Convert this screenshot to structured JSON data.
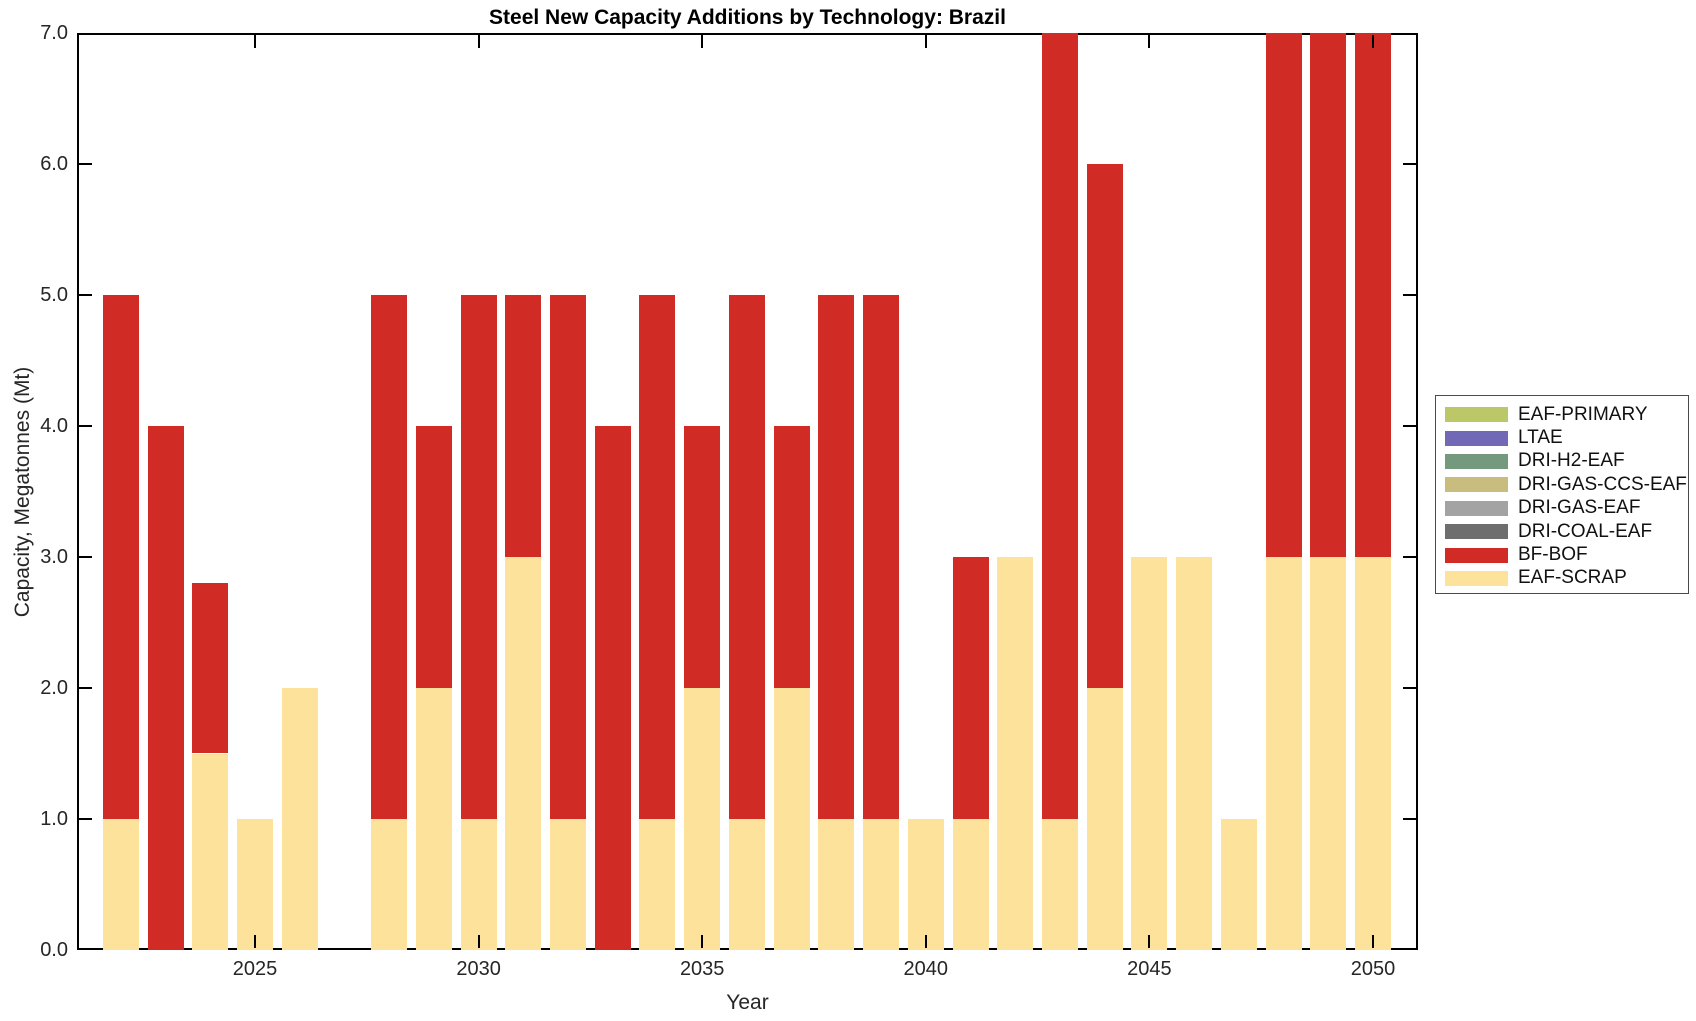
{
  "chart_data": {
    "type": "bar",
    "stacked": true,
    "title": "Steel New Capacity Additions by Technology: Brazil",
    "xlabel": "Year",
    "ylabel": "Capacity, Megatonnes (Mt)",
    "ylim": [
      0.0,
      7.0
    ],
    "grid": false,
    "background_color": "#ffffff",
    "frame_color": "#000000",
    "text_color": "#262626",
    "x": [
      2022,
      2023,
      2024,
      2025,
      2026,
      2027,
      2028,
      2029,
      2030,
      2031,
      2032,
      2033,
      2034,
      2035,
      2036,
      2037,
      2038,
      2039,
      2040,
      2041,
      2042,
      2043,
      2044,
      2045,
      2046,
      2047,
      2048,
      2049,
      2050
    ],
    "xticks": [
      2025,
      2030,
      2035,
      2040,
      2045,
      2050
    ],
    "ytick_labels": [
      "0.0",
      "1.0",
      "2.0",
      "3.0",
      "4.0",
      "5.0",
      "6.0",
      "7.0"
    ],
    "series": [
      {
        "name": "EAF-SCRAP",
        "color": "#FCE29B",
        "values": [
          1,
          0,
          1.5,
          1,
          2,
          0,
          1,
          2,
          1,
          3,
          1,
          0,
          1,
          2,
          1,
          2,
          1,
          1,
          1,
          1,
          3,
          1,
          2,
          3,
          3,
          1,
          3,
          3,
          3
        ]
      },
      {
        "name": "BF-BOF",
        "color": "#D12B26",
        "values": [
          4,
          4,
          1.3,
          0,
          0,
          0,
          4,
          2,
          4,
          2,
          4,
          4,
          4,
          2,
          4,
          2,
          4,
          4,
          0,
          2,
          0,
          6,
          4,
          0,
          0,
          0,
          4,
          4,
          4
        ]
      }
    ],
    "legend": {
      "position": "right",
      "entries": [
        {
          "label": "EAF-PRIMARY",
          "color": "#BCC868"
        },
        {
          "label": "LTAE",
          "color": "#7168B6"
        },
        {
          "label": "DRI-H2-EAF",
          "color": "#75997D"
        },
        {
          "label": "DRI-GAS-CCS-EAF",
          "color": "#C8BD7E"
        },
        {
          "label": "DRI-GAS-EAF",
          "color": "#A3A3A3"
        },
        {
          "label": "DRI-COAL-EAF",
          "color": "#6E6E6E"
        },
        {
          "label": "BF-BOF",
          "color": "#D12B26"
        },
        {
          "label": "EAF-SCRAP",
          "color": "#FCE29B"
        }
      ]
    }
  }
}
